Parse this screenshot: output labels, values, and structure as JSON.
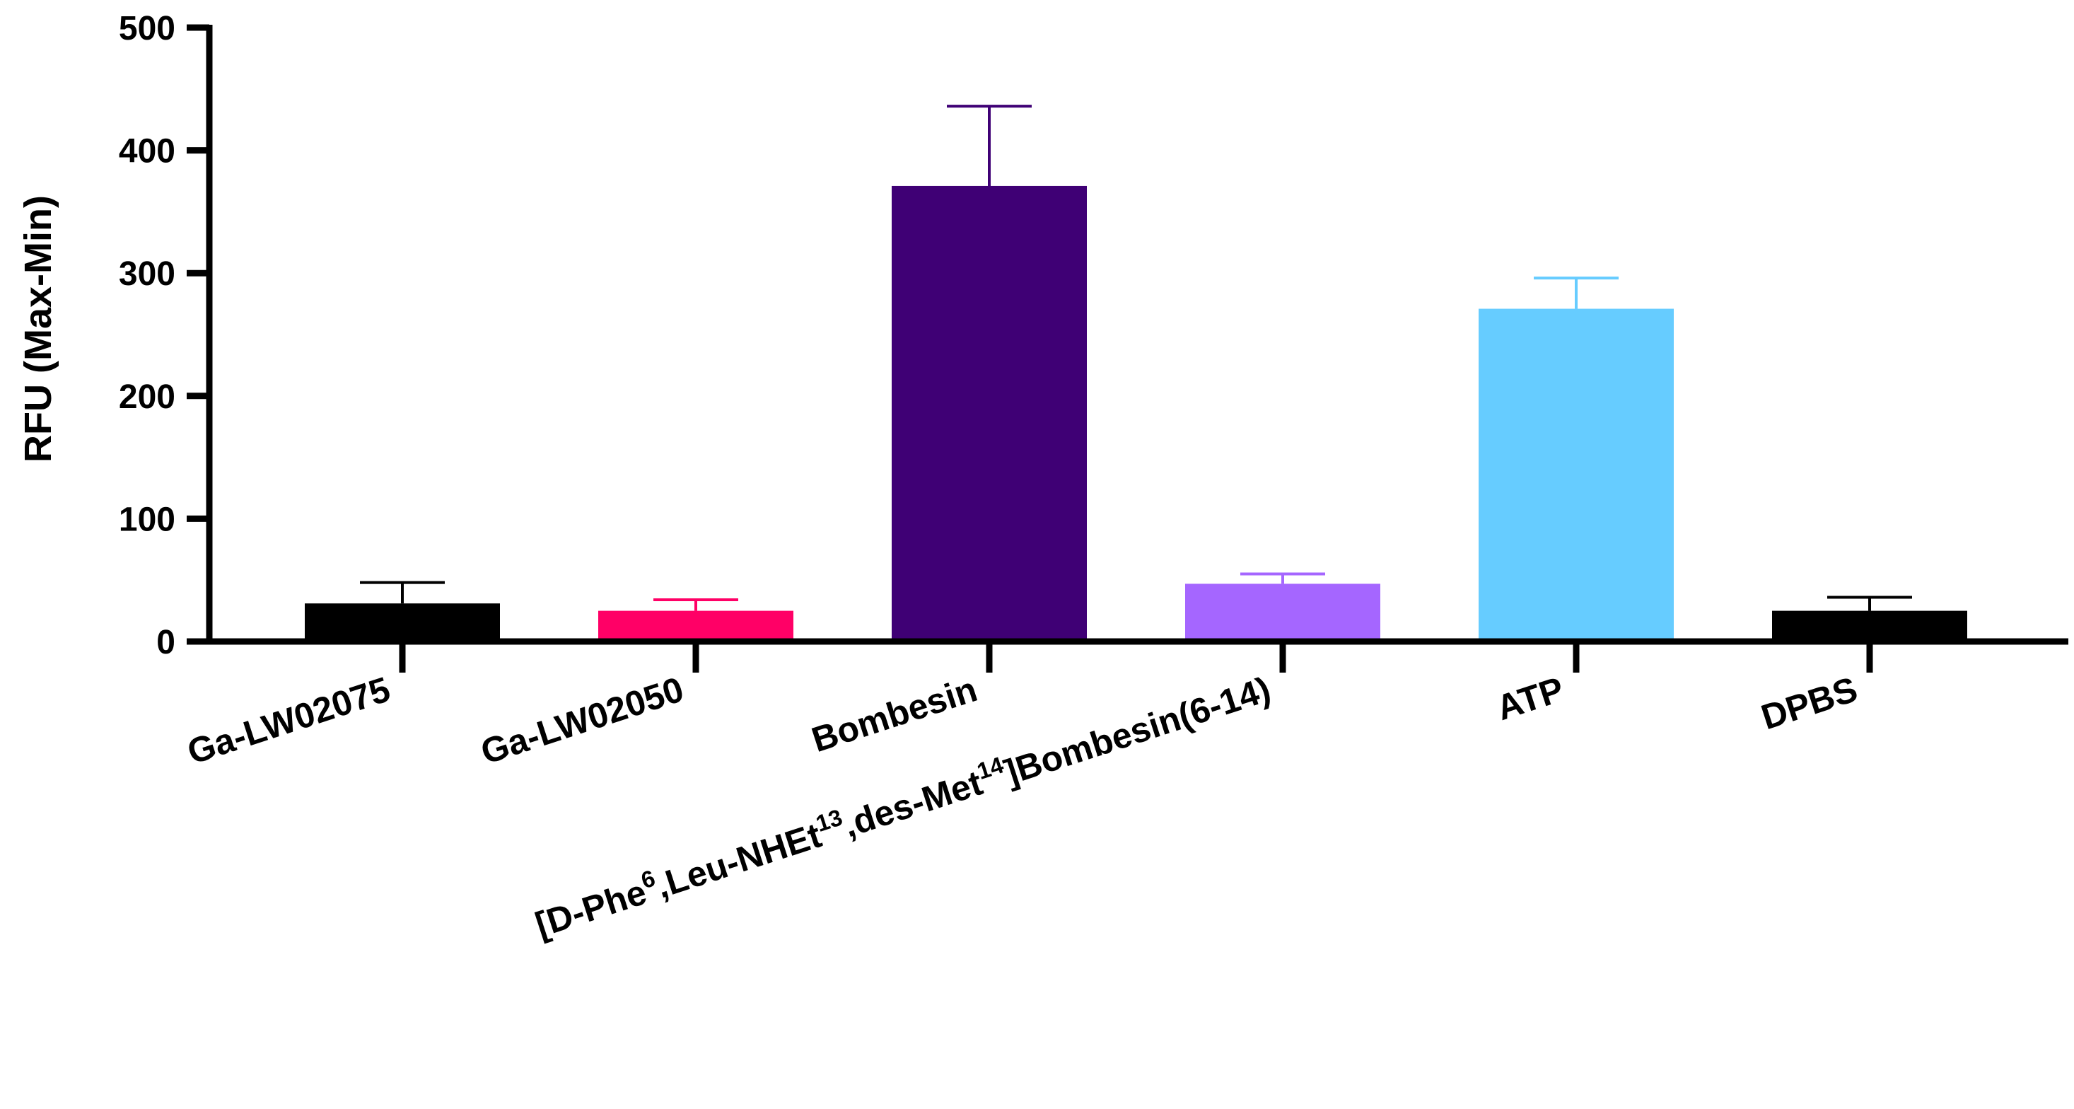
{
  "chart_data": {
    "type": "bar",
    "title": "",
    "xlabel": "",
    "ylabel": "RFU (Max-Min)",
    "ylim": [
      0,
      500
    ],
    "yticks": [
      0,
      100,
      200,
      300,
      400,
      500
    ],
    "ytick_labels": [
      "0",
      "100",
      "200",
      "300",
      "400",
      "500"
    ],
    "grid": false,
    "legend": "none",
    "categories": [
      "Ga-LW02075",
      "Ga-LW02050",
      "Bombesin",
      "[D-Phe6,Leu-NHEt13,des-Met14]Bombesin(6-14)",
      "ATP",
      "DPBS"
    ],
    "category_label_parts": [
      [
        {
          "t": "Ga-LW02075"
        }
      ],
      [
        {
          "t": "Ga-LW02050"
        }
      ],
      [
        {
          "t": "Bombesin"
        }
      ],
      [
        {
          "t": "[D-Phe"
        },
        {
          "t": "6",
          "sup": true
        },
        {
          "t": ",Leu-NHEt"
        },
        {
          "t": "13",
          "sup": true
        },
        {
          "t": ",des-Met"
        },
        {
          "t": "14",
          "sup": true
        },
        {
          "t": "]Bombesin(6-14)"
        }
      ],
      [
        {
          "t": "ATP"
        }
      ],
      [
        {
          "t": "DPBS"
        }
      ]
    ],
    "values": [
      31,
      25,
      371,
      47,
      271,
      25
    ],
    "errors": [
      17,
      9,
      65,
      8,
      25,
      11
    ],
    "colors": [
      "#000000",
      "#ff0066",
      "#3f0075",
      "#a566ff",
      "#66ccff",
      "#000000"
    ]
  }
}
